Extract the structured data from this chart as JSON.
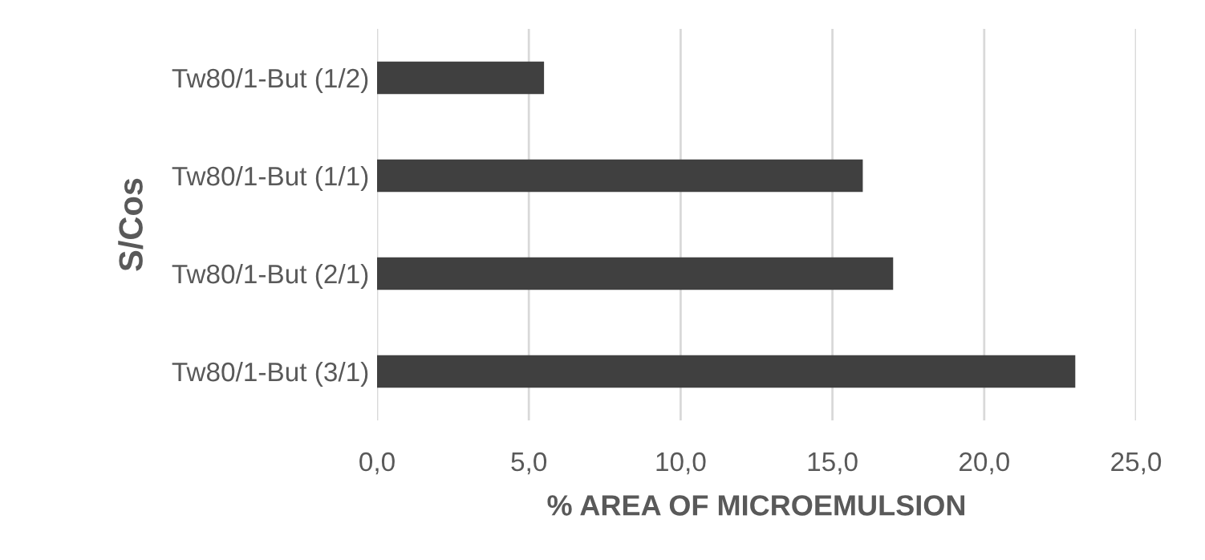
{
  "chart_data": {
    "type": "bar",
    "orientation": "horizontal",
    "xlabel": "% AREA OF MICROEMULSION",
    "ylabel": "S/Cos",
    "categories": [
      "Tw80/1-But (1/2)",
      "Tw80/1-But (1/1)",
      "Tw80/1-But (2/1)",
      "Tw80/1-But (3/1)"
    ],
    "values": [
      5.5,
      16.0,
      17.0,
      23.0
    ],
    "color": "#404040",
    "xlim": [
      0,
      25
    ],
    "xticks": [
      {
        "value": 0,
        "label": "0,0"
      },
      {
        "value": 5,
        "label": "5,0"
      },
      {
        "value": 10,
        "label": "10,0"
      },
      {
        "value": 15,
        "label": "15,0"
      },
      {
        "value": 20,
        "label": "20,0"
      },
      {
        "value": 25,
        "label": "25,0"
      }
    ],
    "grid": "x",
    "legend": false
  }
}
